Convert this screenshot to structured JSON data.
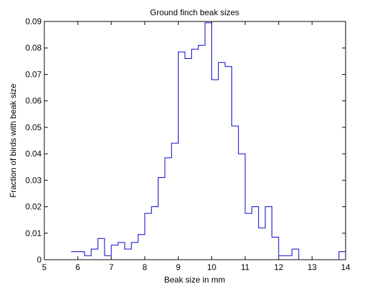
{
  "chart_data": {
    "type": "line",
    "style": "stairs",
    "title": "Ground finch beak sizes",
    "xlabel": "Beak size in mm",
    "ylabel": "Fraction of birds with beak size",
    "xlim": [
      5,
      14
    ],
    "ylim": [
      0,
      0.09
    ],
    "xticks": [
      5,
      6,
      7,
      8,
      9,
      10,
      11,
      12,
      13,
      14
    ],
    "yticks": [
      0,
      0.01,
      0.02,
      0.03,
      0.04,
      0.05,
      0.06,
      0.07,
      0.08,
      0.09
    ],
    "xtick_labels": [
      "5",
      "6",
      "7",
      "8",
      "9",
      "10",
      "11",
      "12",
      "13",
      "14"
    ],
    "ytick_labels": [
      "0",
      "0.01",
      "0.02",
      "0.03",
      "0.04",
      "0.05",
      "0.06",
      "0.07",
      "0.08",
      "0.09"
    ],
    "grid": false,
    "line_color": "#0000cc",
    "series": [
      {
        "x": [
          5.8,
          6.2,
          6.4,
          6.6,
          6.8,
          7.0,
          7.2,
          7.4,
          7.6,
          7.8,
          8.0,
          8.2,
          8.4,
          8.6,
          8.8,
          9.0,
          9.2,
          9.4,
          9.6,
          9.8,
          10.0,
          10.2,
          10.4,
          10.6,
          10.8,
          11.0,
          11.2,
          11.4,
          11.6,
          11.8,
          12.0,
          12.2,
          12.4,
          12.6,
          12.8,
          13.0,
          13.2,
          13.4,
          13.6,
          13.8,
          14.0
        ],
        "y": [
          0.003,
          0.0015,
          0.004,
          0.008,
          0.0015,
          0.0055,
          0.0065,
          0.004,
          0.0065,
          0.0095,
          0.0175,
          0.02,
          0.031,
          0.0385,
          0.044,
          0.0785,
          0.076,
          0.0795,
          0.081,
          0.0895,
          0.068,
          0.0745,
          0.073,
          0.0505,
          0.04,
          0.0175,
          0.02,
          0.012,
          0.02,
          0.0085,
          0.0015,
          0.0015,
          0.004,
          0,
          0,
          0,
          0,
          0,
          0,
          0.003,
          0
        ]
      }
    ]
  }
}
